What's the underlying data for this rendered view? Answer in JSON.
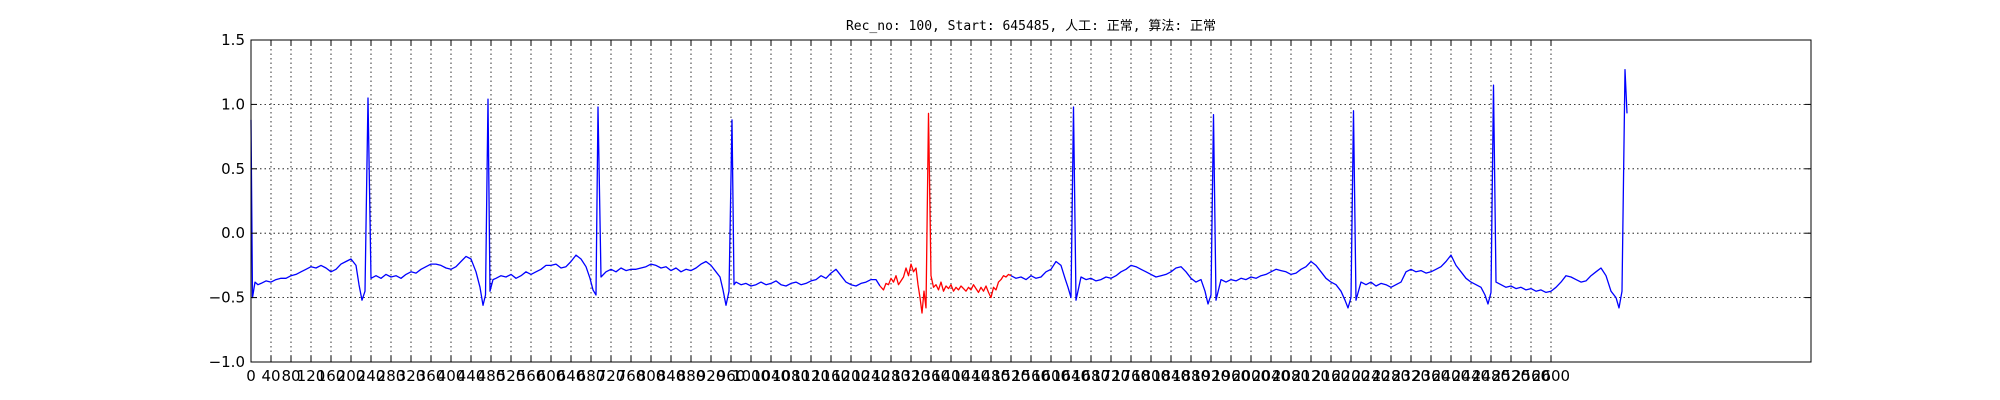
{
  "chart_data": {
    "type": "line",
    "title": "Rec_no: 100, Start: 645485, 人工: 正常, 算法: 正常",
    "xlabel": "",
    "ylabel": "",
    "xlim": [
      0,
      3120
    ],
    "ylim": [
      -1.0,
      1.5
    ],
    "grid": true,
    "y_ticks": [
      -1.0,
      -0.5,
      0.0,
      0.5,
      1.0,
      1.5
    ],
    "y_tick_labels": [
      "−1.0",
      "−0.5",
      "0.0",
      "0.5",
      "1.0",
      "1.5"
    ],
    "x_ticks": [
      0,
      40,
      80,
      120,
      160,
      200,
      240,
      280,
      320,
      360,
      400,
      440,
      480,
      520,
      560,
      600,
      640,
      680,
      720,
      760,
      800,
      840,
      880,
      920,
      960,
      1000,
      1040,
      1080,
      1120,
      1160,
      1200,
      1240,
      1280,
      1320,
      1360,
      1400,
      1440,
      1480,
      1520,
      1560,
      1600,
      1640,
      1680,
      1720,
      1760,
      1800,
      1840,
      1880,
      1920,
      1960,
      2000,
      2040,
      2080,
      2120,
      2160,
      2200,
      2240,
      2280,
      2320,
      2360,
      2400,
      2440,
      2480,
      2520,
      2560,
      2600
    ],
    "x_tick_labels": [
      "0",
      "40",
      "80",
      "120",
      "160",
      "200",
      "240",
      "280",
      "320",
      "360",
      "400",
      "440",
      "480",
      "520",
      "560",
      "600",
      "640",
      "680",
      "720",
      "760",
      "800",
      "840",
      "880",
      "920",
      "960",
      "1000",
      "1040",
      "1080",
      "1120",
      "1160",
      "1200",
      "1240",
      "1280",
      "1320",
      "1360",
      "1400",
      "1440",
      "1480",
      "1520",
      "1560",
      "1600",
      "1640",
      "1680",
      "1720",
      "1760",
      "1800",
      "1840",
      "1880",
      "1920",
      "1960",
      "2000",
      "2040",
      "2080",
      "2120",
      "2160",
      "2200",
      "2240",
      "2280",
      "2320",
      "2360",
      "2400",
      "2440",
      "2480",
      "2520",
      "2560",
      "2600"
    ],
    "series": [
      {
        "color": "#0000ff",
        "x": [
          0,
          3,
          8,
          14,
          20,
          30,
          40,
          50,
          60,
          70,
          80,
          90,
          100,
          110,
          120,
          130,
          140,
          150,
          160,
          170,
          180,
          190,
          200,
          210,
          216,
          222,
          228,
          234,
          240,
          250,
          260,
          270,
          280,
          290,
          300,
          310,
          320,
          330,
          340,
          350,
          360,
          370,
          380,
          390,
          400,
          410,
          420,
          430,
          440,
          450,
          458,
          464,
          469,
          474,
          478,
          484,
          490,
          500,
          510,
          520,
          530,
          540,
          550,
          560,
          570,
          580,
          590,
          600,
          610,
          620,
          630,
          640,
          650,
          660,
          670,
          678,
          684,
          690,
          694,
          700,
          710,
          720,
          730,
          740,
          750,
          760,
          770,
          780,
          790,
          800,
          810,
          820,
          830,
          840,
          850,
          860,
          870,
          880,
          890,
          900,
          910,
          920,
          930,
          938,
          944,
          950,
          956,
          962,
          966,
          970,
          980,
          990,
          1000,
          1010,
          1020,
          1030,
          1040,
          1050,
          1060,
          1070,
          1080,
          1090,
          1100,
          1110,
          1120,
          1130,
          1140,
          1150,
          1160,
          1170,
          1180,
          1190,
          1200,
          1210,
          1220,
          1230,
          1240,
          1250,
          1258
        ],
        "y": [
          0.88,
          -0.5,
          -0.38,
          -0.4,
          -0.39,
          -0.37,
          -0.38,
          -0.36,
          -0.35,
          -0.35,
          -0.33,
          -0.32,
          -0.3,
          -0.28,
          -0.26,
          -0.27,
          -0.25,
          -0.27,
          -0.3,
          -0.28,
          -0.24,
          -0.22,
          -0.2,
          -0.25,
          -0.4,
          -0.52,
          -0.45,
          1.05,
          -0.35,
          -0.33,
          -0.35,
          -0.32,
          -0.34,
          -0.33,
          -0.35,
          -0.32,
          -0.3,
          -0.31,
          -0.28,
          -0.26,
          -0.24,
          -0.24,
          -0.25,
          -0.27,
          -0.28,
          -0.26,
          -0.22,
          -0.18,
          -0.2,
          -0.3,
          -0.42,
          -0.56,
          -0.48,
          1.04,
          -0.45,
          -0.36,
          -0.35,
          -0.33,
          -0.34,
          -0.32,
          -0.35,
          -0.33,
          -0.3,
          -0.32,
          -0.3,
          -0.28,
          -0.25,
          -0.25,
          -0.24,
          -0.27,
          -0.26,
          -0.22,
          -0.17,
          -0.2,
          -0.26,
          -0.35,
          -0.44,
          -0.48,
          0.98,
          -0.34,
          -0.3,
          -0.28,
          -0.3,
          -0.27,
          -0.29,
          -0.28,
          -0.28,
          -0.27,
          -0.26,
          -0.24,
          -0.25,
          -0.27,
          -0.26,
          -0.29,
          -0.27,
          -0.3,
          -0.28,
          -0.29,
          -0.27,
          -0.24,
          -0.22,
          -0.25,
          -0.3,
          -0.34,
          -0.44,
          -0.56,
          -0.45,
          0.88,
          -0.4,
          -0.38,
          -0.4,
          -0.39,
          -0.41,
          -0.4,
          -0.38,
          -0.4,
          -0.39,
          -0.37,
          -0.4,
          -0.41,
          -0.39,
          -0.38,
          -0.4,
          -0.39,
          -0.37,
          -0.36,
          -0.33,
          -0.35,
          -0.31,
          -0.28,
          -0.33,
          -0.38,
          -0.4,
          -0.41,
          -0.39,
          -0.38,
          -0.36,
          -0.36,
          -0.41
        ]
      },
      {
        "color": "#ff0000",
        "x": [
          1258,
          1265,
          1270,
          1275,
          1280,
          1285,
          1290,
          1295,
          1300,
          1305,
          1310,
          1315,
          1320,
          1325,
          1330,
          1334,
          1338,
          1342,
          1346,
          1350,
          1355,
          1360,
          1365,
          1370,
          1375,
          1380,
          1385,
          1390,
          1395,
          1400,
          1405,
          1410,
          1415,
          1420,
          1425,
          1430,
          1435,
          1440,
          1445,
          1450,
          1455,
          1460,
          1465,
          1470,
          1475,
          1480,
          1485,
          1490,
          1495,
          1500,
          1505,
          1510,
          1515,
          1520
        ],
        "y": [
          -0.41,
          -0.44,
          -0.39,
          -0.4,
          -0.35,
          -0.38,
          -0.33,
          -0.4,
          -0.37,
          -0.34,
          -0.27,
          -0.33,
          -0.24,
          -0.3,
          -0.27,
          -0.4,
          -0.5,
          -0.62,
          -0.45,
          -0.58,
          0.93,
          -0.33,
          -0.42,
          -0.4,
          -0.44,
          -0.38,
          -0.45,
          -0.41,
          -0.43,
          -0.4,
          -0.45,
          -0.42,
          -0.44,
          -0.41,
          -0.43,
          -0.45,
          -0.42,
          -0.44,
          -0.4,
          -0.43,
          -0.46,
          -0.42,
          -0.45,
          -0.41,
          -0.46,
          -0.5,
          -0.42,
          -0.44,
          -0.38,
          -0.36,
          -0.33,
          -0.34,
          -0.32,
          -0.33
        ]
      },
      {
        "color": "#0000ff",
        "x": [
          1520,
          1530,
          1540,
          1550,
          1560,
          1570,
          1580,
          1590,
          1600,
          1610,
          1620,
          1628,
          1634,
          1640,
          1645,
          1650,
          1660,
          1670,
          1680,
          1690,
          1700,
          1710,
          1720,
          1730,
          1740,
          1750,
          1760,
          1770,
          1780,
          1790,
          1800,
          1810,
          1820,
          1830,
          1840,
          1850,
          1860,
          1870,
          1880,
          1890,
          1900,
          1908,
          1914,
          1920,
          1925,
          1930,
          1940,
          1950,
          1960,
          1970,
          1980,
          1990,
          2000,
          2010,
          2020,
          2030,
          2040,
          2050,
          2060,
          2070,
          2080,
          2090,
          2100,
          2110,
          2120,
          2130,
          2140,
          2150,
          2160,
          2170,
          2180,
          2188,
          2194,
          2200,
          2205,
          2210,
          2220,
          2230,
          2240,
          2250,
          2260,
          2270,
          2280,
          2290,
          2300,
          2310,
          2320,
          2330,
          2340,
          2350,
          2360,
          2370,
          2380,
          2390,
          2400,
          2410,
          2420,
          2430,
          2440,
          2450,
          2460,
          2468,
          2474,
          2480,
          2485,
          2490,
          2500,
          2510,
          2520,
          2530,
          2540,
          2550,
          2560,
          2570,
          2580,
          2590,
          2600,
          2610,
          2620,
          2630,
          2640,
          2650,
          2660,
          2670,
          2680,
          2690,
          2700,
          2710,
          2720,
          2730,
          2736,
          2742,
          2748,
          2752
        ],
        "y": [
          -0.33,
          -0.35,
          -0.34,
          -0.36,
          -0.33,
          -0.35,
          -0.34,
          -0.3,
          -0.28,
          -0.22,
          -0.25,
          -0.35,
          -0.42,
          -0.5,
          0.98,
          -0.52,
          -0.34,
          -0.36,
          -0.35,
          -0.37,
          -0.36,
          -0.34,
          -0.35,
          -0.33,
          -0.3,
          -0.28,
          -0.25,
          -0.26,
          -0.28,
          -0.3,
          -0.32,
          -0.34,
          -0.33,
          -0.32,
          -0.3,
          -0.27,
          -0.26,
          -0.3,
          -0.35,
          -0.38,
          -0.36,
          -0.45,
          -0.55,
          -0.48,
          0.92,
          -0.52,
          -0.36,
          -0.38,
          -0.36,
          -0.37,
          -0.35,
          -0.36,
          -0.34,
          -0.35,
          -0.33,
          -0.32,
          -0.3,
          -0.28,
          -0.29,
          -0.3,
          -0.32,
          -0.31,
          -0.28,
          -0.26,
          -0.22,
          -0.25,
          -0.3,
          -0.35,
          -0.38,
          -0.4,
          -0.45,
          -0.52,
          -0.58,
          -0.5,
          0.95,
          -0.52,
          -0.38,
          -0.4,
          -0.38,
          -0.41,
          -0.39,
          -0.4,
          -0.42,
          -0.4,
          -0.38,
          -0.3,
          -0.28,
          -0.3,
          -0.29,
          -0.31,
          -0.3,
          -0.28,
          -0.26,
          -0.22,
          -0.17,
          -0.25,
          -0.3,
          -0.35,
          -0.38,
          -0.4,
          -0.42,
          -0.48,
          -0.55,
          -0.46,
          1.15,
          -0.38,
          -0.4,
          -0.42,
          -0.41,
          -0.43,
          -0.42,
          -0.44,
          -0.43,
          -0.45,
          -0.44,
          -0.46,
          -0.45,
          -0.42,
          -0.38,
          -0.33,
          -0.34,
          -0.36,
          -0.38,
          -0.37,
          -0.33,
          -0.3,
          -0.27,
          -0.33,
          -0.45,
          -0.5,
          -0.58,
          -0.45,
          1.27,
          0.93
        ]
      }
    ]
  }
}
